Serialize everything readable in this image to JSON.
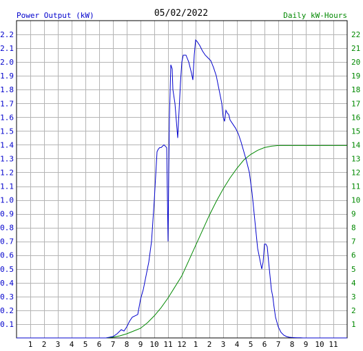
{
  "chart_data": {
    "type": "line",
    "date_label": "05/02/2022",
    "left_axis_title": "Power Output (kW)",
    "right_axis_title": "Daily kW-Hours",
    "x_tick_labels": [
      "1",
      "2",
      "3",
      "4",
      "5",
      "6",
      "7",
      "8",
      "9",
      "10",
      "11",
      "12",
      "1",
      "2",
      "3",
      "4",
      "5",
      "6",
      "7",
      "8",
      "9",
      "10",
      "11"
    ],
    "xlim": [
      0,
      24
    ],
    "ylim_left": [
      0,
      2.3
    ],
    "ylim_right": [
      0,
      23
    ],
    "y_left_ticks": [
      "0.1",
      "0.2",
      "0.3",
      "0.4",
      "0.5",
      "0.6",
      "0.7",
      "0.8",
      "0.9",
      "1.0",
      "1.1",
      "1.2",
      "1.3",
      "1.4",
      "1.5",
      "1.6",
      "1.7",
      "1.8",
      "1.9",
      "2.0",
      "2.1",
      "2.2"
    ],
    "y_right_ticks": [
      "1",
      "2",
      "3",
      "4",
      "5",
      "6",
      "7",
      "8",
      "9",
      "10",
      "11",
      "12",
      "13",
      "14",
      "15",
      "16",
      "17",
      "18",
      "19",
      "20",
      "21",
      "22"
    ],
    "grid": true,
    "colors": {
      "power": "#0000cc",
      "energy": "#008800",
      "grid": "#b4b4b4",
      "date": "#000000"
    },
    "series": [
      {
        "axis": "left",
        "x": [
          0,
          6.5,
          7.0,
          7.3,
          7.6,
          7.8,
          8.0,
          8.2,
          8.4,
          8.6,
          8.8,
          9.0,
          9.2,
          9.4,
          9.6,
          9.8,
          10.0,
          10.2,
          10.3,
          10.4,
          10.5,
          10.7,
          10.9,
          11.0,
          11.05,
          11.1,
          11.2,
          11.3,
          11.35,
          11.5,
          11.7,
          11.9,
          12.0,
          12.1,
          12.3,
          12.5,
          12.7,
          12.8,
          12.9,
          13.0,
          13.1,
          13.3,
          13.5,
          13.7,
          13.9,
          14.1,
          14.3,
          14.5,
          14.7,
          14.9,
          15.0,
          15.1,
          15.2,
          15.3,
          15.4,
          15.5,
          15.7,
          15.9,
          16.1,
          16.3,
          16.5,
          16.7,
          16.9,
          17.1,
          17.3,
          17.5,
          17.7,
          17.8,
          17.9,
          18.0,
          18.1,
          18.2,
          18.3,
          18.4,
          18.5,
          18.6,
          18.7,
          18.8,
          19.0,
          19.2,
          19.4,
          19.6,
          19.8,
          20.0,
          20.2,
          20.4,
          20.6,
          20.8,
          21.0,
          24
        ],
        "y": [
          0,
          0,
          0.01,
          0.03,
          0.06,
          0.05,
          0.08,
          0.12,
          0.15,
          0.16,
          0.17,
          0.28,
          0.35,
          0.45,
          0.55,
          0.7,
          1.0,
          1.35,
          1.37,
          1.38,
          1.38,
          1.4,
          1.38,
          0.7,
          1.2,
          1.6,
          1.98,
          1.95,
          1.8,
          1.7,
          1.45,
          1.85,
          2.0,
          2.05,
          2.05,
          2.0,
          1.92,
          1.87,
          2.05,
          2.16,
          2.15,
          2.12,
          2.08,
          2.05,
          2.03,
          2.01,
          1.96,
          1.9,
          1.8,
          1.7,
          1.6,
          1.57,
          1.65,
          1.63,
          1.62,
          1.58,
          1.55,
          1.52,
          1.48,
          1.42,
          1.35,
          1.28,
          1.2,
          1.05,
          0.85,
          0.65,
          0.55,
          0.5,
          0.55,
          0.68,
          0.68,
          0.66,
          0.55,
          0.45,
          0.35,
          0.3,
          0.22,
          0.15,
          0.08,
          0.04,
          0.02,
          0.01,
          0.005,
          0.003,
          0.002,
          0.001,
          0.001,
          0,
          0,
          0
        ]
      },
      {
        "axis": "right",
        "x": [
          0,
          6.5,
          7.0,
          7.5,
          8.0,
          8.5,
          9.0,
          9.5,
          10.0,
          10.5,
          11.0,
          11.5,
          12.0,
          12.5,
          13.0,
          13.5,
          14.0,
          14.5,
          15.0,
          15.5,
          16.0,
          16.5,
          17.0,
          17.5,
          18.0,
          18.5,
          19.0,
          19.5,
          20.0,
          21.0,
          24
        ],
        "y": [
          0,
          0,
          0.05,
          0.15,
          0.3,
          0.5,
          0.7,
          1.1,
          1.6,
          2.2,
          2.9,
          3.7,
          4.5,
          5.6,
          6.7,
          7.8,
          8.9,
          9.9,
          10.8,
          11.6,
          12.3,
          12.9,
          13.3,
          13.6,
          13.8,
          13.9,
          13.95,
          13.95,
          13.95,
          13.95,
          13.95
        ]
      }
    ]
  }
}
